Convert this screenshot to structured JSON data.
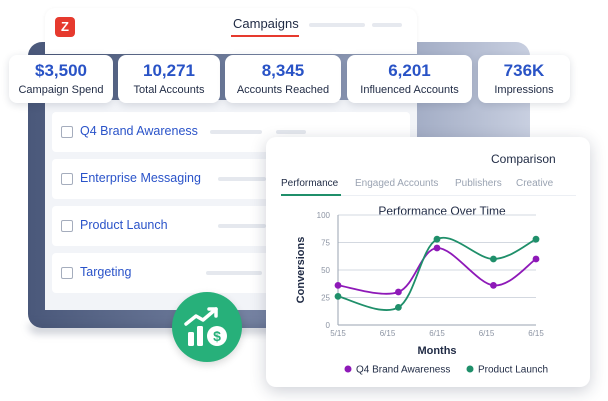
{
  "app": {
    "logo_letter": "Z",
    "header_title": "Campaigns"
  },
  "stats": [
    {
      "value": "$3,500",
      "label": "Campaign Spend"
    },
    {
      "value": "10,271",
      "label": "Total Accounts"
    },
    {
      "value": "8,345",
      "label": "Accounts Reached"
    },
    {
      "value": "6,201",
      "label": "Influenced Accounts"
    },
    {
      "value": "736K",
      "label": "Impressions"
    }
  ],
  "campaigns": [
    {
      "name": "Q4 Brand Awareness"
    },
    {
      "name": "Enterprise Messaging"
    },
    {
      "name": "Product Launch"
    },
    {
      "name": "Targeting"
    }
  ],
  "comparison": {
    "title": "Comparison",
    "tabs": [
      "Performance",
      "Engaged Accounts",
      "Publishers",
      "Creative"
    ],
    "active_tab": "Performance"
  },
  "badge": {
    "icon": "growth-dollar-icon"
  },
  "colors": {
    "accent_blue": "#2953c6",
    "brand_red": "#e63a2e",
    "series_purple": "#8e19b8",
    "series_green": "#1f8f6a",
    "badge_green": "#27b07a"
  },
  "chart_data": {
    "type": "line",
    "title": "Performance Over Time",
    "xlabel": "Months",
    "ylabel": "Conversions",
    "categories": [
      "5/15",
      "6/15",
      "6/15",
      "6/15",
      "6/15"
    ],
    "ylim": [
      0,
      100
    ],
    "yticks": [
      0,
      25,
      50,
      75,
      100
    ],
    "grid": true,
    "legend_position": "bottom",
    "series": [
      {
        "name": "Q4 Brand Awareness",
        "color": "#8e19b8",
        "points": [
          [
            0,
            36
          ],
          [
            1.22,
            30
          ],
          [
            2,
            70
          ],
          [
            3.14,
            36
          ],
          [
            4,
            60
          ]
        ]
      },
      {
        "name": "Product Launch",
        "color": "#1f8f6a",
        "points": [
          [
            0,
            26
          ],
          [
            1.22,
            16
          ],
          [
            2,
            78
          ],
          [
            3.14,
            60
          ],
          [
            4,
            78
          ]
        ]
      }
    ]
  }
}
